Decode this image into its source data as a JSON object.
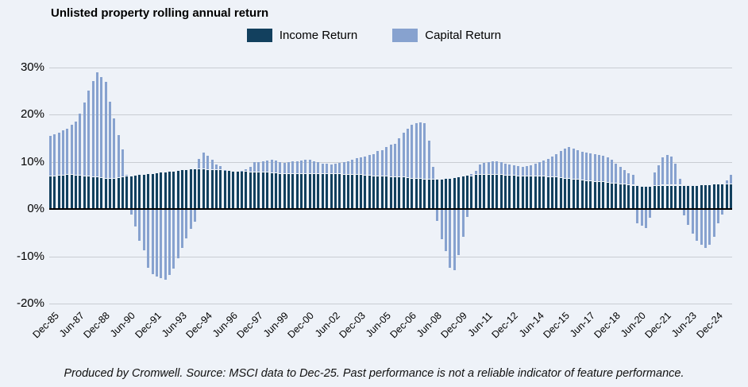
{
  "title": "Unlisted property rolling annual return",
  "legend": {
    "income_label": "Income Return",
    "capital_label": "Capital Return"
  },
  "colors": {
    "income": "#12405e",
    "capital": "#87a2cf",
    "gridline": "#c9cdd3",
    "zero_line": "#000000",
    "background": "#eef2f8"
  },
  "footer_text": "Produced by Cromwell. Source: MSCI data to Dec-25. Past performance is not a reliable indicator of feature performance.",
  "chart_data": {
    "type": "bar",
    "stacked": true,
    "title": "Unlisted property rolling annual return",
    "xlabel": "",
    "ylabel": "",
    "ylim": [
      -20,
      30
    ],
    "ytick_labels": [
      "30%",
      "20%",
      "10%",
      "0%",
      "-10%",
      "-20%"
    ],
    "ytick_values": [
      30,
      20,
      10,
      0,
      -10,
      -20
    ],
    "grid": true,
    "legend_position": "top",
    "x_frequency": "quarterly",
    "x_start": "Dec-85",
    "x_end": "Dec-25",
    "x_tick_labels": [
      "Dec-85",
      "Jun-87",
      "Dec-88",
      "Jun-90",
      "Dec-91",
      "Jun-93",
      "Dec-94",
      "Jun-96",
      "Dec-97",
      "Jun-99",
      "Dec-00",
      "Jun-02",
      "Dec-03",
      "Jun-05",
      "Dec-06",
      "Jun-08",
      "Dec-09",
      "Jun-11",
      "Dec-12",
      "Jun-14",
      "Dec-15",
      "Jun-17",
      "Dec-18",
      "Jun-20",
      "Dec-21",
      "Jun-23",
      "Dec-24"
    ],
    "tick_every": 6,
    "series": [
      {
        "name": "Income Return",
        "color": "#12405e",
        "values": [
          7.0,
          7.0,
          7.1,
          7.1,
          7.2,
          7.2,
          7.1,
          7.1,
          7.0,
          6.9,
          6.8,
          6.7,
          6.6,
          6.5,
          6.5,
          6.5,
          6.6,
          6.7,
          6.9,
          7.0,
          7.1,
          7.2,
          7.3,
          7.4,
          7.5,
          7.6,
          7.7,
          7.8,
          7.9,
          8.0,
          8.1,
          8.2,
          8.3,
          8.4,
          8.4,
          8.4,
          8.4,
          8.3,
          8.3,
          8.2,
          8.2,
          8.1,
          8.1,
          8.0,
          7.9,
          7.9,
          7.9,
          7.8,
          7.8,
          7.8,
          7.7,
          7.7,
          7.6,
          7.6,
          7.5,
          7.5,
          7.5,
          7.5,
          7.5,
          7.5,
          7.5,
          7.5,
          7.5,
          7.5,
          7.5,
          7.5,
          7.4,
          7.4,
          7.4,
          7.3,
          7.3,
          7.2,
          7.2,
          7.2,
          7.1,
          7.1,
          7.0,
          7.0,
          6.9,
          6.9,
          6.8,
          6.8,
          6.7,
          6.7,
          6.6,
          6.5,
          6.4,
          6.4,
          6.3,
          6.3,
          6.3,
          6.2,
          6.3,
          6.4,
          6.5,
          6.6,
          6.8,
          7.0,
          7.1,
          6.9,
          7.2,
          7.2,
          7.2,
          7.2,
          7.2,
          7.2,
          7.2,
          7.1,
          7.1,
          7.1,
          7.0,
          7.0,
          7.0,
          7.0,
          7.0,
          6.9,
          6.9,
          6.8,
          6.8,
          6.7,
          6.6,
          6.5,
          6.4,
          6.3,
          6.2,
          6.1,
          6.0,
          5.9,
          5.8,
          5.8,
          5.7,
          5.6,
          5.5,
          5.4,
          5.3,
          5.2,
          5.1,
          5.0,
          4.9,
          4.8,
          4.8,
          4.8,
          4.9,
          4.9,
          5.0,
          5.0,
          5.0,
          5.0,
          5.0,
          5.0,
          5.0,
          5.0,
          5.0,
          5.1,
          5.1,
          5.1,
          5.2,
          5.2,
          5.2,
          5.3,
          5.3
        ]
      },
      {
        "name": "Capital Return",
        "color": "#87a2cf",
        "values": [
          8.5,
          8.8,
          9.1,
          9.6,
          9.8,
          10.6,
          11.5,
          13.2,
          15.6,
          18.2,
          20.4,
          22.3,
          21.4,
          20.4,
          16.2,
          12.7,
          9.1,
          5.9,
          0.3,
          -1.0,
          -3.5,
          -6.6,
          -8.5,
          -12.2,
          -13.6,
          -14.1,
          -14.5,
          -14.8,
          -13.8,
          -12.5,
          -10.2,
          -8.0,
          -6.0,
          -4.0,
          -2.5,
          2.2,
          3.6,
          3.0,
          2.1,
          1.3,
          0.9,
          0.2,
          0.1,
          0.1,
          0.1,
          0.2,
          0.6,
          1.1,
          2.1,
          2.2,
          2.5,
          2.6,
          2.8,
          2.7,
          2.5,
          2.3,
          2.4,
          2.6,
          2.7,
          2.8,
          2.9,
          3.0,
          2.7,
          2.5,
          2.2,
          2.1,
          2.1,
          2.2,
          2.4,
          2.7,
          2.9,
          3.3,
          3.6,
          3.7,
          4.1,
          4.3,
          4.7,
          5.3,
          5.6,
          6.2,
          6.9,
          7.1,
          8.4,
          9.5,
          10.4,
          11.4,
          11.8,
          11.9,
          11.9,
          8.2,
          2.7,
          -2.3,
          -6.2,
          -8.7,
          -12.3,
          -12.7,
          -9.6,
          -5.7,
          -1.5,
          0.6,
          0.9,
          2.3,
          2.6,
          2.8,
          3.0,
          2.9,
          2.7,
          2.6,
          2.4,
          2.2,
          2.1,
          2.0,
          2.1,
          2.3,
          2.6,
          3.0,
          3.4,
          3.9,
          4.4,
          5.0,
          5.7,
          6.4,
          6.8,
          6.6,
          6.3,
          6.1,
          6.0,
          5.9,
          5.8,
          5.7,
          5.6,
          5.3,
          4.9,
          4.3,
          3.6,
          3.0,
          2.5,
          2.2,
          -2.9,
          -3.4,
          -3.9,
          -1.7,
          2.9,
          4.4,
          6.0,
          6.5,
          6.2,
          4.7,
          1.4,
          -1.2,
          -3.1,
          -5.1,
          -6.5,
          -7.4,
          -8.0,
          -7.3,
          -5.7,
          -2.9,
          -1.0,
          0.8,
          2.0
        ]
      }
    ]
  }
}
